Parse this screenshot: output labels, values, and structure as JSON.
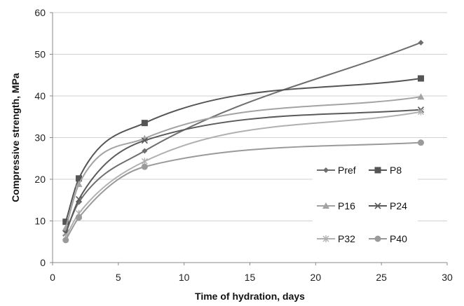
{
  "chart_data": {
    "type": "scatter",
    "xlabel": "Time of hydration, days",
    "ylabel": "Compressive strength, MPa",
    "xlim": [
      0,
      30
    ],
    "ylim": [
      0,
      60
    ],
    "xticks": [
      0,
      5,
      10,
      15,
      20,
      25,
      30
    ],
    "yticks": [
      0,
      10,
      20,
      30,
      40,
      50,
      60
    ],
    "grid": "horizontal",
    "legend_position": "center-right",
    "series": [
      {
        "name": "Pref",
        "marker": "diamond",
        "color": "#6e6e6e",
        "x": [
          1,
          2,
          7,
          28
        ],
        "y": [
          7.5,
          14.5,
          26.8,
          52.8
        ]
      },
      {
        "name": "P8",
        "marker": "square",
        "color": "#555555",
        "x": [
          1,
          2,
          7,
          28
        ],
        "y": [
          9.8,
          20.2,
          33.5,
          44.2
        ]
      },
      {
        "name": "P16",
        "marker": "triangle",
        "color": "#a3a3a3",
        "x": [
          1,
          2,
          7,
          28
        ],
        "y": [
          8.3,
          18.8,
          29.8,
          39.8
        ]
      },
      {
        "name": "P24",
        "marker": "x",
        "color": "#5a5a5a",
        "x": [
          1,
          2,
          7,
          28
        ],
        "y": [
          7.0,
          15.2,
          29.3,
          36.7
        ]
      },
      {
        "name": "P32",
        "marker": "star",
        "color": "#b0b0b0",
        "x": [
          1,
          2,
          7,
          28
        ],
        "y": [
          6.2,
          11.8,
          24.3,
          36.2
        ]
      },
      {
        "name": "P40",
        "marker": "circle",
        "color": "#9a9a9a",
        "x": [
          1,
          2,
          7,
          28
        ],
        "y": [
          5.4,
          10.8,
          23.0,
          28.8
        ]
      }
    ]
  }
}
